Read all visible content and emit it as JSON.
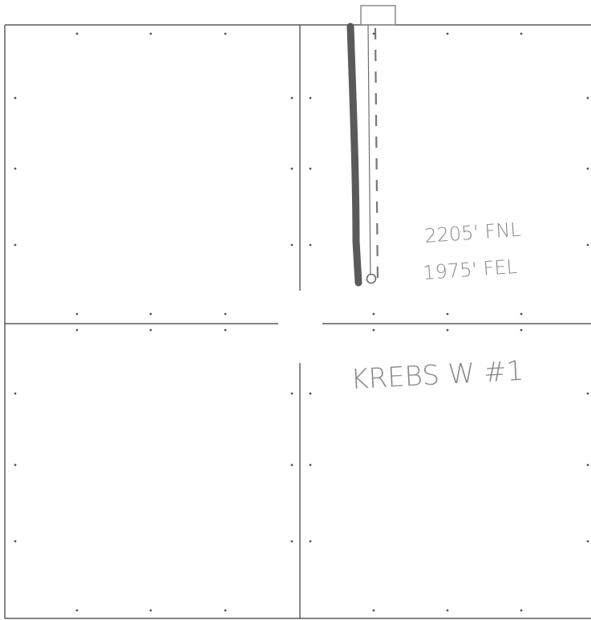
{
  "diagram": {
    "type": "well-location-plat-sketch",
    "sections": 4,
    "colors": {
      "grid_line": "#3a3a3a",
      "well_bore_solid": "#5a5a5a",
      "well_bore_dashed": "#777777",
      "handwriting": "#8a8a8a"
    },
    "well": {
      "location_line_1": "2205' FNL",
      "location_line_2": "1975' FEL",
      "name": "KREBS W #1"
    }
  }
}
